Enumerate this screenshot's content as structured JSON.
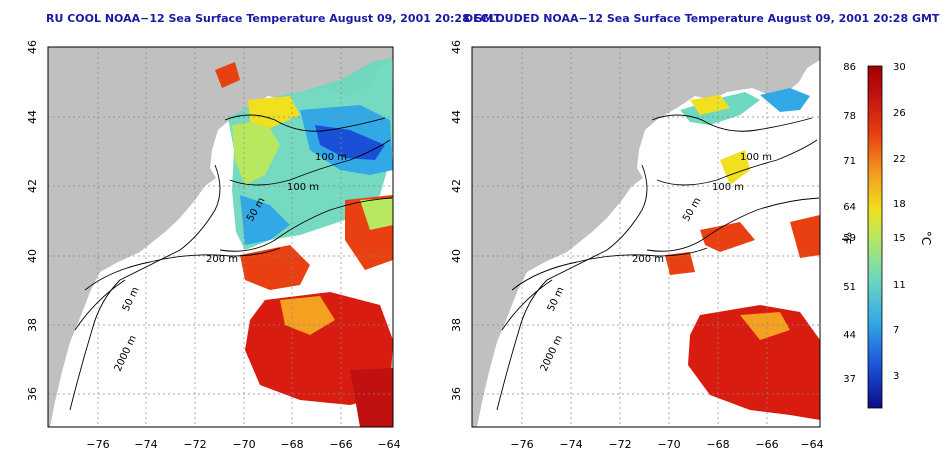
{
  "colors": {
    "land": "#c0c0c0",
    "ocean": "#ffffff",
    "title": "#1a1aa6",
    "grid": "#888888",
    "contour": "#000000",
    "colorbar": [
      "#0b0b8a",
      "#1a50d8",
      "#33a8e6",
      "#6fd8c0",
      "#b8e860",
      "#f0e020",
      "#f5a020",
      "#e84010",
      "#c01010",
      "#a00000"
    ]
  },
  "panels": [
    {
      "title": "RU COOL NOAA−12 Sea Surface Temperature August 09, 2001 20:28 GMT",
      "variant": "raw"
    },
    {
      "title": "DECLOUDED NOAA−12 Sea Surface Temperature August 09, 2001 20:28 GMT",
      "variant": "declouded"
    }
  ],
  "map": {
    "lon_ticks": [
      "−76",
      "−74",
      "−72",
      "−70",
      "−68",
      "−66",
      "−64"
    ],
    "lat_ticks": [
      "46",
      "44",
      "42",
      "40",
      "38",
      "36"
    ],
    "contour_labels": [
      "100 m",
      "100 m",
      "50 m",
      "200 m",
      "50 m",
      "2000 m"
    ]
  },
  "colorbar": {
    "f_label": "°F",
    "c_label": "°C",
    "f_ticks": [
      "86",
      "78",
      "71",
      "64",
      "59",
      "51",
      "44",
      "37"
    ],
    "c_ticks": [
      "30",
      "26",
      "22",
      "18",
      "15",
      "11",
      "7",
      "3"
    ],
    "range_c": [
      0,
      30
    ]
  }
}
